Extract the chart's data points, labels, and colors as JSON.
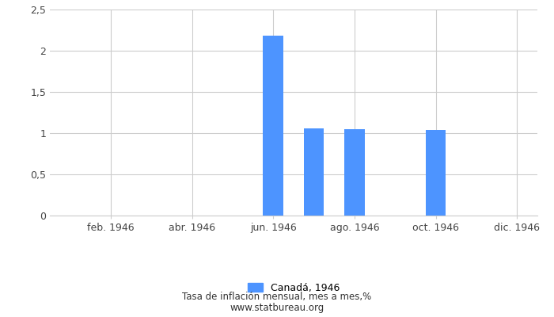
{
  "months_count": 12,
  "values": [
    0,
    0,
    0,
    0,
    0,
    2.18,
    1.06,
    1.05,
    0,
    1.04,
    0,
    0
  ],
  "bar_color": "#4d94ff",
  "xtick_labels": [
    "feb. 1946",
    "abr. 1946",
    "jun. 1946",
    "ago. 1946",
    "oct. 1946",
    "dic. 1946"
  ],
  "xtick_positions": [
    2,
    4,
    6,
    8,
    10,
    12
  ],
  "xlim": [
    0.5,
    12.5
  ],
  "ylim": [
    0,
    2.5
  ],
  "yticks": [
    0,
    0.5,
    1.0,
    1.5,
    2.0,
    2.5
  ],
  "ytick_labels": [
    "0",
    "0,5",
    "1",
    "1,5",
    "2",
    "2,5"
  ],
  "bar_width": 0.5,
  "legend_label": "Canadá, 1946",
  "footer_line1": "Tasa de inflación mensual, mes a mes,%",
  "footer_line2": "www.statbureau.org",
  "background_color": "#ffffff",
  "grid_color": "#cccccc"
}
